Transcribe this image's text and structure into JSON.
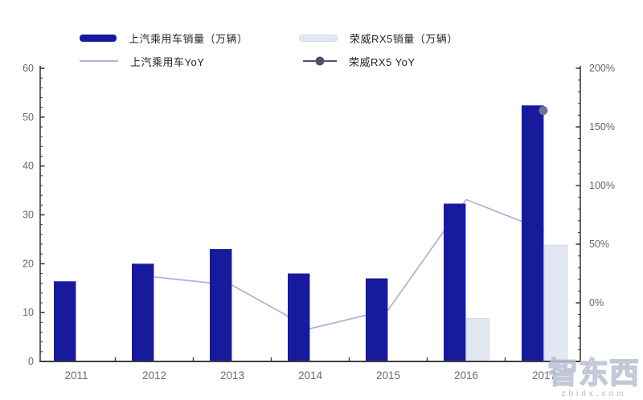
{
  "chart_data": {
    "type": "combo-bar-line",
    "title": "",
    "categories": [
      "2011",
      "2012",
      "2013",
      "2014",
      "2015",
      "2016",
      "2017"
    ],
    "series": [
      {
        "name": "上汽乘用车销量（万辆）",
        "type": "bar",
        "axis": "left",
        "color": "#181a9c",
        "values": [
          16.4,
          20,
          23,
          18,
          17,
          32.3,
          52.4
        ]
      },
      {
        "name": "荣威RX5销量（万辆）",
        "type": "bar",
        "axis": "left",
        "color": "#e2e7f2",
        "border_color": "#d3dbe9",
        "values": [
          null,
          null,
          null,
          null,
          null,
          8.8,
          23.8
        ]
      },
      {
        "name": "上汽乘用车YoY",
        "type": "line",
        "axis": "right",
        "unit": "%",
        "color": "#a8b4da",
        "values": [
          null,
          22,
          15,
          -22,
          -6,
          88,
          62
        ]
      },
      {
        "name": "荣威RX5 YoY",
        "type": "point",
        "axis": "right",
        "unit": "%",
        "color": "#70709a",
        "values": [
          null,
          null,
          null,
          null,
          null,
          null,
          164
        ]
      }
    ],
    "left_axis": {
      "min": 0,
      "max": 60,
      "major_ticks": [
        0,
        10,
        20,
        30,
        40,
        50,
        60
      ],
      "tick_labels": [
        "0",
        "10",
        "20",
        "30",
        "40",
        "50",
        "60"
      ],
      "minor_step": 2
    },
    "right_axis": {
      "min": -50,
      "max": 200,
      "major_tick_values": [
        -50,
        0,
        50,
        100,
        150,
        200
      ],
      "labeled_ticks": [
        0,
        50,
        100,
        150,
        200
      ],
      "tick_labels": [
        "0%",
        "50%",
        "100%",
        "150%",
        "200%"
      ],
      "minor_step": 10
    },
    "grid": false,
    "legend_position": "top"
  },
  "watermark": {
    "title": "智东西",
    "domain": "zhidx.com"
  }
}
